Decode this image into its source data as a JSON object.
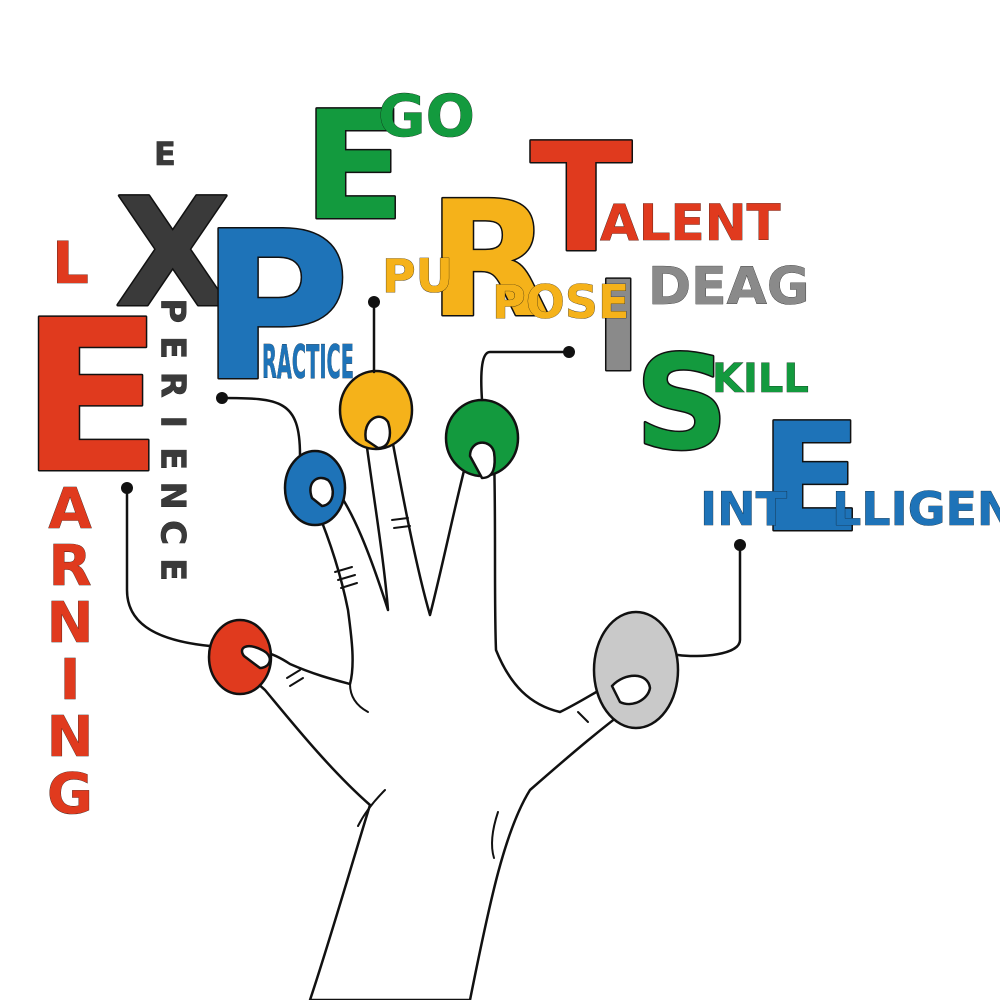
{
  "colors": {
    "red": "#e03a1e",
    "dark": "#3a3a3a",
    "blue": "#1e73b8",
    "green": "#139a3e",
    "orange": "#f5b21a",
    "gray": "#8a8a8a",
    "light_gray": "#c9c9c9"
  },
  "icons": [
    "hand-icon",
    "button-icons"
  ],
  "letters": {
    "e1": "E",
    "x": "X",
    "p": "P",
    "e2": "E",
    "r": "R",
    "t": "T",
    "i": "I",
    "s": "S",
    "e3": "E"
  },
  "words": {
    "learning_l": "L",
    "learning_rest": [
      "A",
      "R",
      "N",
      "I",
      "N",
      "G"
    ],
    "experience_e": "E",
    "experience_rest": [
      "P",
      "E",
      "R",
      "I",
      "E",
      "N",
      "C",
      "E"
    ],
    "practice": "RACTICE",
    "ego": "GO",
    "purpose_left": "PU",
    "purpose_right": "POSE",
    "talent": "ALENT",
    "ideas": "DEAG",
    "skill": "KILL",
    "intelligence_left": "INT",
    "intelligence_right": "LLIGENCE"
  }
}
